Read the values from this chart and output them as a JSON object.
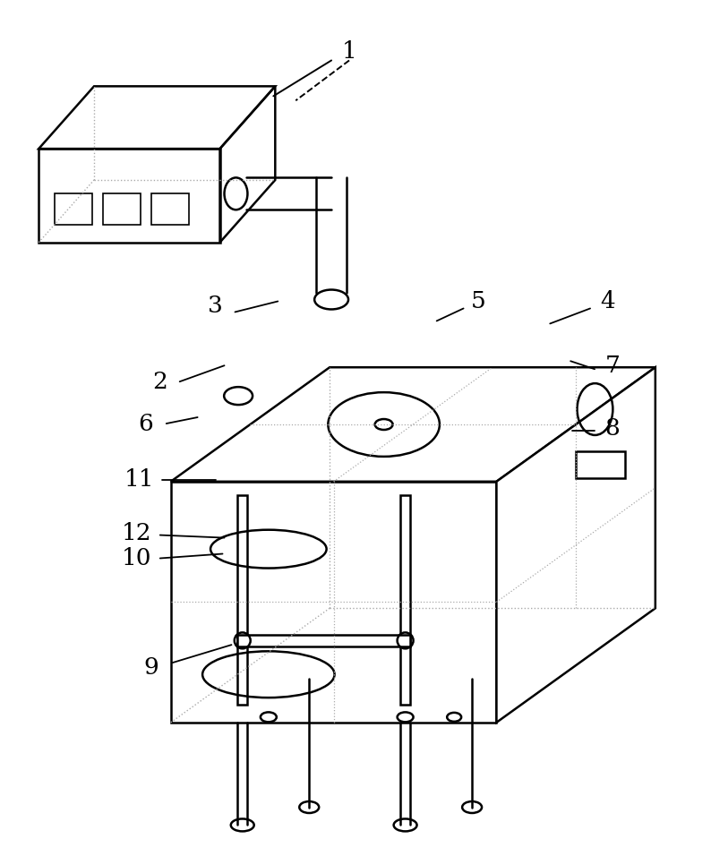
{
  "figsize": [
    7.94,
    9.56
  ],
  "dpi": 100,
  "bg_color": "#ffffff",
  "line_color": "#000000",
  "dot_color": "#aaaaaa"
}
